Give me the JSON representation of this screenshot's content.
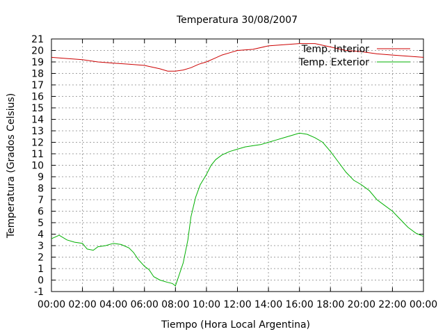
{
  "chart_data": {
    "type": "line",
    "title": "Temperatura 30/08/2007",
    "xlabel": "Tiempo (Hora Local Argentina)",
    "ylabel": "Temperatura (Grados Celsius)",
    "x_ticks": [
      "00:00",
      "02:00",
      "04:00",
      "06:00",
      "08:00",
      "10:00",
      "12:00",
      "14:00",
      "16:00",
      "18:00",
      "20:00",
      "22:00",
      "00:00"
    ],
    "xlim": [
      0,
      24
    ],
    "ylim": [
      -1,
      21
    ],
    "y_ticks": [
      -1,
      0,
      1,
      2,
      3,
      4,
      5,
      6,
      7,
      8,
      9,
      10,
      11,
      12,
      13,
      14,
      15,
      16,
      17,
      18,
      19,
      20,
      21
    ],
    "grid": true,
    "legend_position": "top-right",
    "series": [
      {
        "name": "Temp. Interior",
        "color": "#cc0000",
        "x": [
          0,
          1,
          2,
          3,
          4,
          5,
          6,
          7,
          7.5,
          8,
          8.5,
          9,
          9.5,
          10,
          10.5,
          11,
          11.5,
          12,
          13,
          14,
          15,
          16,
          17,
          18,
          19,
          20,
          21,
          22,
          23,
          24
        ],
        "values": [
          19.4,
          19.3,
          19.2,
          19.0,
          18.9,
          18.8,
          18.7,
          18.4,
          18.2,
          18.2,
          18.3,
          18.5,
          18.8,
          19.0,
          19.3,
          19.6,
          19.8,
          20.0,
          20.1,
          20.4,
          20.5,
          20.6,
          20.6,
          20.3,
          20.0,
          19.9,
          19.7,
          19.6,
          19.5,
          19.4
        ]
      },
      {
        "name": "Temp. Exterior",
        "color": "#00b000",
        "x": [
          0,
          0.5,
          1,
          1.5,
          2,
          2.3,
          2.7,
          3,
          3.5,
          4,
          4.5,
          5,
          5.3,
          5.6,
          6,
          6.3,
          6.6,
          7,
          7.5,
          7.8,
          8,
          8.2,
          8.5,
          8.8,
          9,
          9.3,
          9.6,
          10,
          10.3,
          10.6,
          11,
          11.5,
          12,
          12.5,
          13,
          13.5,
          14,
          14.5,
          15,
          15.5,
          16,
          16.5,
          17,
          17.5,
          18,
          18.5,
          19,
          19.5,
          20,
          20.5,
          21,
          21.5,
          22,
          22.5,
          23,
          23.5,
          24
        ],
        "values": [
          3.6,
          3.9,
          3.5,
          3.3,
          3.2,
          2.7,
          2.6,
          2.9,
          3.0,
          3.2,
          3.1,
          2.8,
          2.4,
          1.8,
          1.2,
          0.9,
          0.3,
          0,
          -0.2,
          -0.3,
          -0.5,
          0.3,
          1.5,
          3.5,
          5.5,
          7.2,
          8.3,
          9.2,
          10.0,
          10.5,
          10.9,
          11.2,
          11.4,
          11.6,
          11.7,
          11.8,
          12.0,
          12.2,
          12.4,
          12.6,
          12.8,
          12.7,
          12.4,
          12.0,
          11.2,
          10.3,
          9.4,
          8.7,
          8.3,
          7.8,
          7.0,
          6.5,
          6.0,
          5.3,
          4.6,
          4.1,
          3.8
        ]
      }
    ]
  }
}
